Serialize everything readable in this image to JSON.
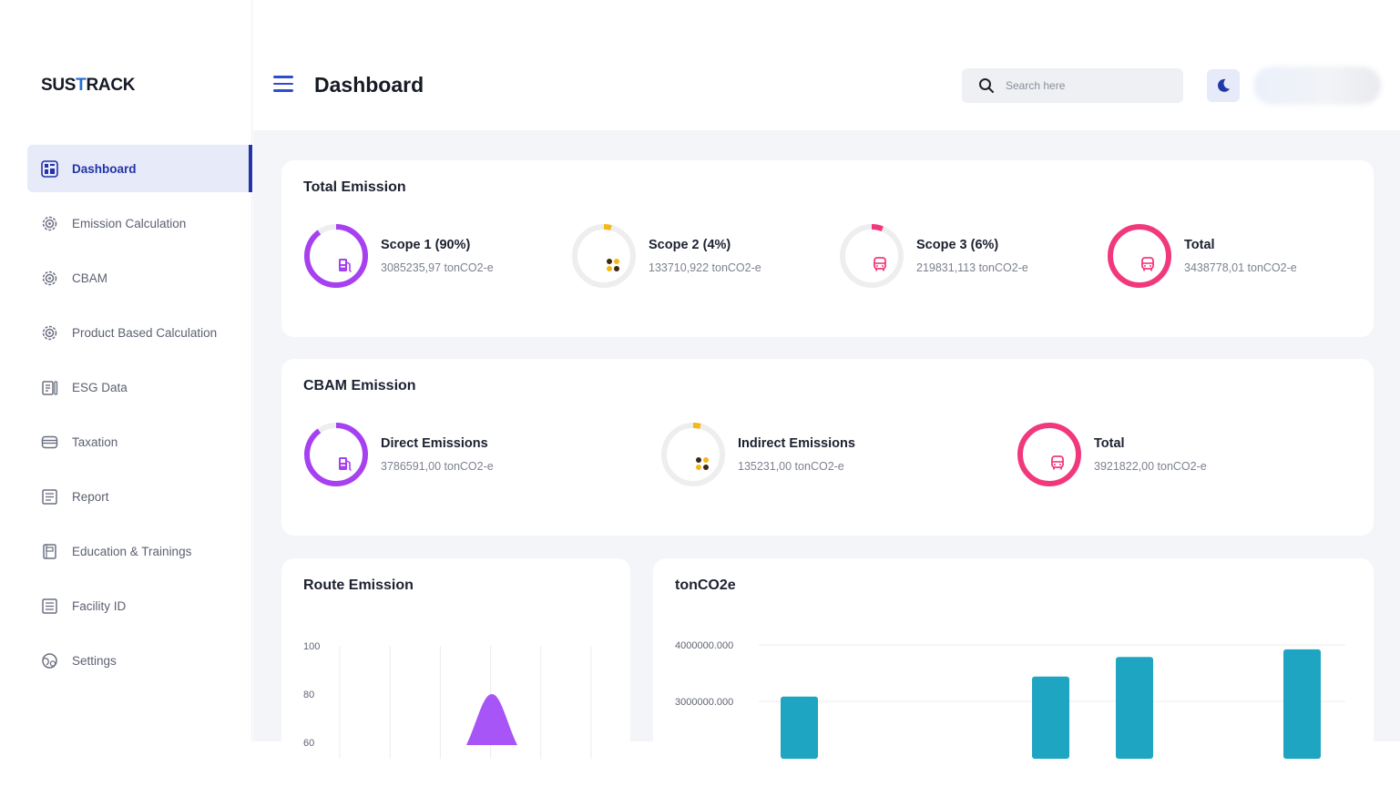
{
  "brand": {
    "logo_pre": "SUS",
    "logo_accent": "T",
    "logo_post": "RACK"
  },
  "sidebar": {
    "items": [
      {
        "label": "Dashboard",
        "icon": "dashboard-icon",
        "active": true
      },
      {
        "label": "Emission Calculation",
        "icon": "gear-icon"
      },
      {
        "label": "CBAM",
        "icon": "gear-icon"
      },
      {
        "label": "Product Based Calculation",
        "icon": "gear-icon"
      },
      {
        "label": "ESG Data",
        "icon": "clipboard-icon"
      },
      {
        "label": "Taxation",
        "icon": "wallet-icon"
      },
      {
        "label": "Report",
        "icon": "document-icon"
      },
      {
        "label": "Education & Trainings",
        "icon": "book-icon"
      },
      {
        "label": "Facility ID",
        "icon": "list-icon"
      },
      {
        "label": "Settings",
        "icon": "globe-settings-icon"
      }
    ]
  },
  "header": {
    "title": "Dashboard",
    "search_placeholder": "Search here"
  },
  "total_emission": {
    "title": "Total Emission",
    "stats": [
      {
        "label": "Scope 1 (90%)",
        "value": "3085235,97 tonCO2-e",
        "fraction": 0.9,
        "color": "#a640f0",
        "icon": "fuel-pump-icon"
      },
      {
        "label": "Scope 2 (4%)",
        "value": "133710,922 tonCO2-e",
        "fraction": 0.04,
        "color": "#f5b81a",
        "icon": "dots-icon"
      },
      {
        "label": "Scope 3 (6%)",
        "value": "219831,113 tonCO2-e",
        "fraction": 0.06,
        "color": "#f2387c",
        "icon": "bus-icon"
      },
      {
        "label": "Total",
        "value": "3438778,01 tonCO2-e",
        "fraction": 1.0,
        "color": "#f2387c",
        "icon": "bus-icon"
      }
    ]
  },
  "cbam_emission": {
    "title": "CBAM Emission",
    "stats": [
      {
        "label": "Direct Emissions",
        "value": "3786591,00 tonCO2-e",
        "fraction": 0.9,
        "color": "#a640f0",
        "icon": "fuel-pump-icon"
      },
      {
        "label": "Indirect Emissions",
        "value": "135231,00 tonCO2-e",
        "fraction": 0.04,
        "color": "#f5b81a",
        "icon": "dots-icon"
      },
      {
        "label": "Total",
        "value": "3921822,00 tonCO2-e",
        "fraction": 1.0,
        "color": "#f2387c",
        "icon": "bus-icon"
      }
    ]
  },
  "route_chart": {
    "title": "Route Emission",
    "chart_data": {
      "type": "area",
      "y_ticks": [
        "100",
        "80",
        "60"
      ],
      "ylim": [
        60,
        100
      ],
      "peak_value": 80,
      "color": "#a855f7"
    }
  },
  "tonco2e_chart": {
    "title": "tonCO2e",
    "chart_data": {
      "type": "bar",
      "y_ticks": [
        "4000000.000",
        "3000000.000"
      ],
      "ylim": [
        2300000,
        4000000
      ],
      "values": [
        3085235.97,
        null,
        null,
        3438778.01,
        3786591.0,
        null,
        3921822.0
      ],
      "color": "#1ea5c1"
    }
  }
}
